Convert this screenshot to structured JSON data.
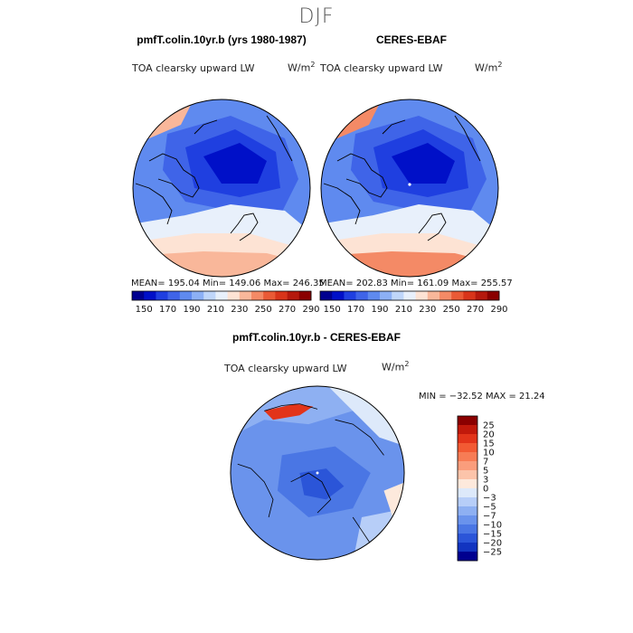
{
  "figure": {
    "title": "DJF"
  },
  "panels": [
    {
      "id": "model",
      "title": "pmfT.colin.10yr.b (yrs 1980-1987)",
      "variable": "TOA clearsky upward LW",
      "units_base": "W/m",
      "units_exp": "2",
      "stats": "MEAN= 195.04   Min= 149.06   Max= 246.35",
      "palette": "sequential"
    },
    {
      "id": "obs",
      "title": "CERES-EBAF",
      "variable": "TOA clearsky upward LW",
      "units_base": "W/m",
      "units_exp": "2",
      "stats": "MEAN= 202.83   Min= 161.09   Max= 255.57",
      "palette": "sequential"
    },
    {
      "id": "diff",
      "title": "pmfT.colin.10yr.b - CERES-EBAF",
      "variable": "TOA clearsky upward LW",
      "units_base": "W/m",
      "units_exp": "2",
      "stats": "MIN = −32.52  MAX =  21.24",
      "palette": "diverging"
    }
  ],
  "colorbars": {
    "sequential": {
      "tick_labels": [
        "150",
        "170",
        "190",
        "210",
        "230",
        "250",
        "270",
        "290"
      ],
      "colors": [
        "#00008f",
        "#0010c8",
        "#1f3fe0",
        "#3f64e8",
        "#5f8aef",
        "#8cb0f5",
        "#bfd6fa",
        "#e8f0fb",
        "#fde3d4",
        "#f9b79a",
        "#f48a66",
        "#ea5a36",
        "#d8341a",
        "#b5180d",
        "#8a0000"
      ]
    },
    "diverging": {
      "tick_labels": [
        "25",
        "20",
        "15",
        "10",
        "7",
        "5",
        "3",
        "0",
        "−3",
        "−5",
        "−7",
        "−10",
        "−15",
        "−20",
        "−25"
      ],
      "colors": [
        "#8b0000",
        "#c1190b",
        "#e2341a",
        "#f25a33",
        "#f77c55",
        "#fa9d7c",
        "#fcc4aa",
        "#fde9dc",
        "#dde9fa",
        "#b7cef8",
        "#8eb0f2",
        "#6a93ec",
        "#4a76e4",
        "#2b55d8",
        "#1234c0",
        "#00008f"
      ]
    }
  },
  "palette_ui": {
    "ocean_blue": "#1f3fe0",
    "warm": "#f48a66",
    "outline": "#000000"
  }
}
